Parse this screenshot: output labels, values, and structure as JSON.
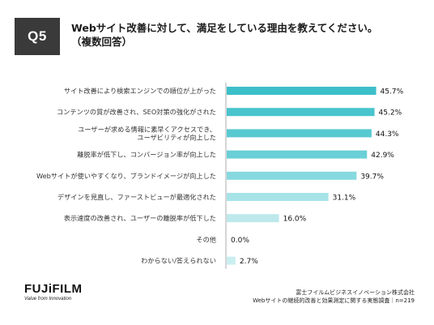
{
  "header": {
    "badge": "Q5",
    "title": "Webサイト改善に対して、満足をしている理由を教えてください。",
    "subtitle": "（複数回答）"
  },
  "chart_data": {
    "type": "bar",
    "orientation": "horizontal",
    "categories": [
      [
        "サイト改善により検索エンジンでの順位が上がった"
      ],
      [
        "コンテンツの質が改善され、SEO対策の強化がされた"
      ],
      [
        "ユーザーが求める情報に素早くアクセスでき、",
        "ユーザビリティが向上した"
      ],
      [
        "離脱率が低下し、コンバージョン率が向上した"
      ],
      [
        "Webサイトが使いやすくなり、ブランドイメージが向上した"
      ],
      [
        "デザインを見直し、ファーストビューが最適化された"
      ],
      [
        "表示速度の改善され、ユーザーの離脱率が低下した"
      ],
      [
        "その他"
      ],
      [
        "わからない/答えられない"
      ]
    ],
    "values": [
      45.7,
      45.2,
      44.3,
      42.9,
      39.7,
      31.1,
      16.0,
      0.0,
      2.7
    ],
    "value_labels": [
      "45.7%",
      "45.2%",
      "44.3%",
      "42.9%",
      "39.7%",
      "31.1%",
      "16.0%",
      "0.0%",
      "2.7%"
    ],
    "colors": [
      "#3cbfc9",
      "#49c4cd",
      "#57c9d1",
      "#6acfd6",
      "#86d9de",
      "#a6e3e7",
      "#bde9ec",
      "#cbeef0",
      "#cbeef0"
    ],
    "xlim": [
      0,
      52
    ]
  },
  "footer": {
    "logo": "FUJiFILM",
    "logo_tagline": "Value from Innovation",
    "source_line1": "富士フイルムビジネスイノベーション株式会社",
    "source_line2": "Webサイトの継続的改善と効果測定に関する実態調査｜n=219"
  }
}
